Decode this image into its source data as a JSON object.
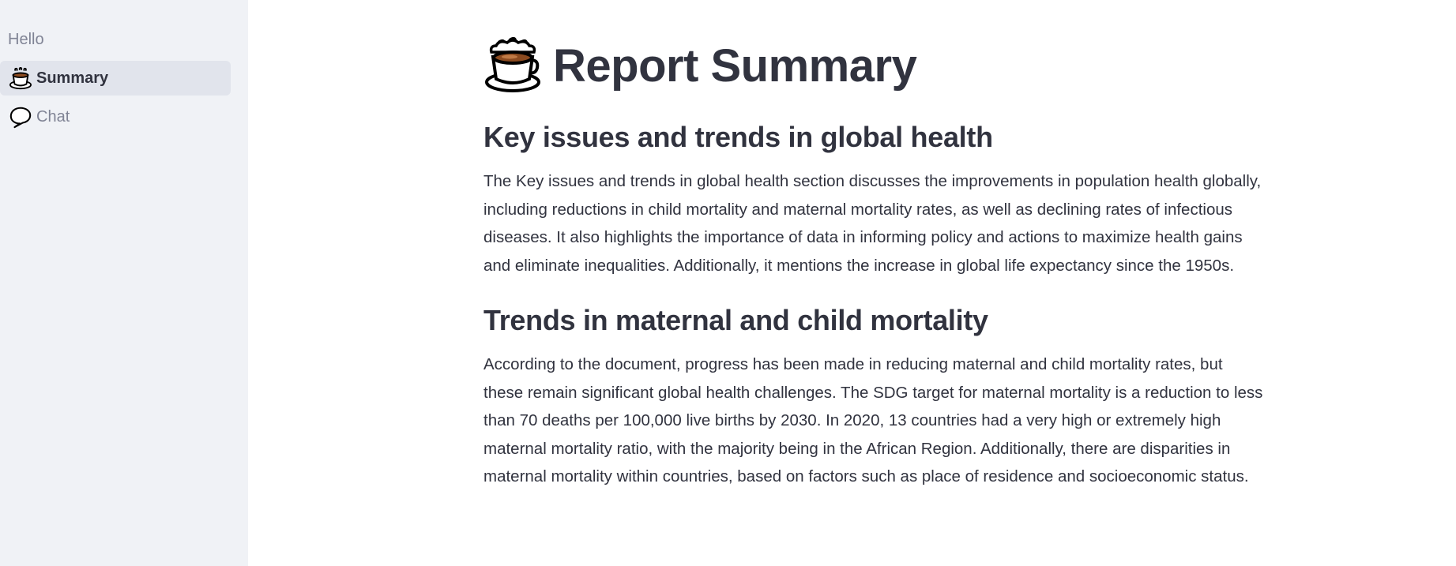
{
  "sidebar": {
    "items": [
      {
        "label": "Hello",
        "icon": ""
      },
      {
        "label": "Summary",
        "icon": "coffee-cup-icon"
      },
      {
        "label": "Chat",
        "icon": "speech-bubble-icon"
      }
    ],
    "active_index": 1
  },
  "main": {
    "title": "Report Summary",
    "title_icon": "coffee-cup-icon",
    "sections": [
      {
        "heading": "Key issues and trends in global health",
        "text": "The Key issues and trends in global health section discusses the improvements in population health globally, including reductions in child mortality and maternal mortality rates, as well as declining rates of infectious diseases. It also highlights the importance of data in informing policy and actions to maximize health gains and eliminate inequalities. Additionally, it mentions the increase in global life expectancy since the 1950s."
      },
      {
        "heading": "Trends in maternal and child mortality",
        "text": "According to the document, progress has been made in reducing maternal and child mortality rates, but these remain significant global health challenges. The SDG target for maternal mortality is a reduction to less than 70 deaths per 100,000 live births by 2030. In 2020, 13 countries had a very high or extremely high maternal mortality ratio, with the majority being in the African Region. Additionally, there are disparities in maternal mortality within countries, based on factors such as place of residence and socioeconomic status."
      }
    ]
  },
  "colors": {
    "sidebar_bg": "#f0f2f6",
    "active_item_bg": "#e1e4ec",
    "text": "#31333f",
    "muted_text": "#808495"
  }
}
